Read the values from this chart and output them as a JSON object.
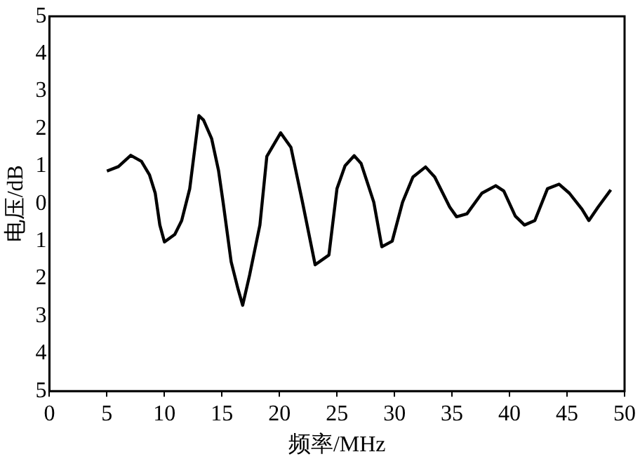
{
  "chart_data": {
    "type": "line",
    "xlabel": "频率/MHz",
    "ylabel": "电压/dB",
    "x": [
      5.0,
      6.0,
      7.07,
      8.0,
      8.7,
      9.2,
      9.6,
      10.0,
      10.9,
      11.5,
      12.2,
      13.0,
      13.4,
      14.1,
      14.7,
      15.1,
      15.8,
      16.4,
      16.8,
      17.4,
      18.3,
      18.9,
      20.1,
      21.0,
      22.0,
      23.1,
      24.3,
      25.0,
      25.7,
      26.5,
      27.1,
      28.2,
      28.9,
      29.8,
      30.7,
      31.6,
      32.7,
      33.5,
      34.8,
      35.4,
      36.3,
      37.6,
      38.8,
      39.5,
      40.5,
      41.3,
      42.2,
      43.3,
      44.3,
      45.2,
      46.3,
      46.9,
      47.7,
      48.8
    ],
    "series": [
      {
        "color": "#000000",
        "values": [
          0.87,
          0.99,
          1.29,
          1.13,
          0.77,
          0.28,
          -0.57,
          -1.02,
          -0.82,
          -0.45,
          0.4,
          2.35,
          2.23,
          1.74,
          0.89,
          0.04,
          -1.55,
          -2.28,
          -2.71,
          -1.91,
          -0.57,
          1.26,
          1.89,
          1.5,
          0.04,
          -1.63,
          -1.37,
          0.4,
          1.01,
          1.28,
          1.07,
          0.04,
          -1.15,
          -1.0,
          0.04,
          0.71,
          0.98,
          0.71,
          -0.09,
          -0.35,
          -0.27,
          0.28,
          0.48,
          0.34,
          -0.33,
          -0.57,
          -0.45,
          0.4,
          0.52,
          0.28,
          -0.15,
          -0.45,
          -0.09,
          0.37
        ]
      }
    ],
    "xlim": [
      0,
      50
    ],
    "xticks": [
      0,
      5,
      10,
      15,
      20,
      25,
      30,
      35,
      40,
      45,
      50
    ],
    "ylim": [
      -5,
      5
    ],
    "yticks": [
      {
        "value": -5,
        "label": "5"
      },
      {
        "value": -4,
        "label": "4"
      },
      {
        "value": -3,
        "label": "3"
      },
      {
        "value": -2,
        "label": "2"
      },
      {
        "value": -1,
        "label": "1"
      },
      0,
      1,
      2,
      3,
      4,
      5
    ],
    "grid": false,
    "legend": false,
    "marker": "none",
    "line_style": "solid"
  }
}
